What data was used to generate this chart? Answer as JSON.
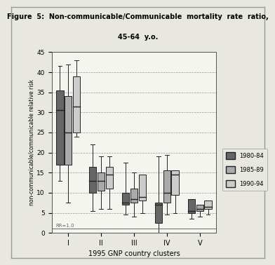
{
  "title_line1": "Figure  5:  Non-communicable/Communicable  mortality  rate  ratio,",
  "title_line2": "45-64  y.o.",
  "xlabel": "1995 GNP country clusters",
  "ylabel": "non-communicable/communicable relative risk",
  "ylim": [
    0,
    45
  ],
  "yticks": [
    0,
    5,
    10,
    15,
    20,
    25,
    30,
    35,
    40,
    45
  ],
  "xtick_labels": [
    "I",
    "II",
    "III",
    "IV",
    "V"
  ],
  "rr_label": "RR=1.0",
  "legend_labels": [
    "1980-84",
    "1985-89",
    "1990-94"
  ],
  "colors": [
    "#666666",
    "#aaaaaa",
    "#cccccc"
  ],
  "edge_color": "#222222",
  "fig_facecolor": "#e8e8e0",
  "ax_facecolor": "#f5f5ef",
  "boxes": {
    "I": {
      "1980-84": {
        "whislo": 13,
        "q1": 17,
        "med": 30.5,
        "q3": 35.5,
        "whishi": 41.5
      },
      "1985-89": {
        "whislo": 7.5,
        "q1": 17,
        "med": 25,
        "q3": 34,
        "whishi": 42
      },
      "1990-94": {
        "whislo": 24,
        "q1": 25,
        "med": 31.5,
        "q3": 39,
        "whishi": 43
      }
    },
    "II": {
      "1980-84": {
        "whislo": 5.5,
        "q1": 10,
        "med": 13,
        "q3": 16.5,
        "whishi": 22
      },
      "1985-89": {
        "whislo": 6,
        "q1": 10.5,
        "med": 13,
        "q3": 15,
        "whishi": 19
      },
      "1990-94": {
        "whislo": 6,
        "q1": 11,
        "med": 14.5,
        "q3": 16.5,
        "whishi": 19
      }
    },
    "III": {
      "1980-84": {
        "whislo": 4.5,
        "q1": 7,
        "med": 7.5,
        "q3": 10,
        "whishi": 17.5
      },
      "1985-89": {
        "whislo": 4,
        "q1": 7.5,
        "med": 8.5,
        "q3": 11,
        "whishi": 15
      },
      "1990-94": {
        "whislo": 5,
        "q1": 8,
        "med": 9,
        "q3": 14.5,
        "whishi": 14.5
      }
    },
    "IV": {
      "1980-84": {
        "whislo": 0,
        "q1": 2.5,
        "med": 7,
        "q3": 7.5,
        "whishi": 19
      },
      "1985-89": {
        "whislo": 4.5,
        "q1": 7.5,
        "med": 10,
        "q3": 15.5,
        "whishi": 19.5
      },
      "1990-94": {
        "whislo": 5,
        "q1": 9.5,
        "med": 14.5,
        "q3": 15.5,
        "whishi": 15.5
      }
    },
    "V": {
      "1980-84": {
        "whislo": 3.5,
        "q1": 5,
        "med": 5.5,
        "q3": 8.5,
        "whishi": 8.5
      },
      "1985-89": {
        "whislo": 4,
        "q1": 5.5,
        "med": 6,
        "q3": 7,
        "whishi": 7
      },
      "1990-94": {
        "whislo": 4.5,
        "q1": 6,
        "med": 6.5,
        "q3": 8,
        "whishi": 8
      }
    }
  }
}
